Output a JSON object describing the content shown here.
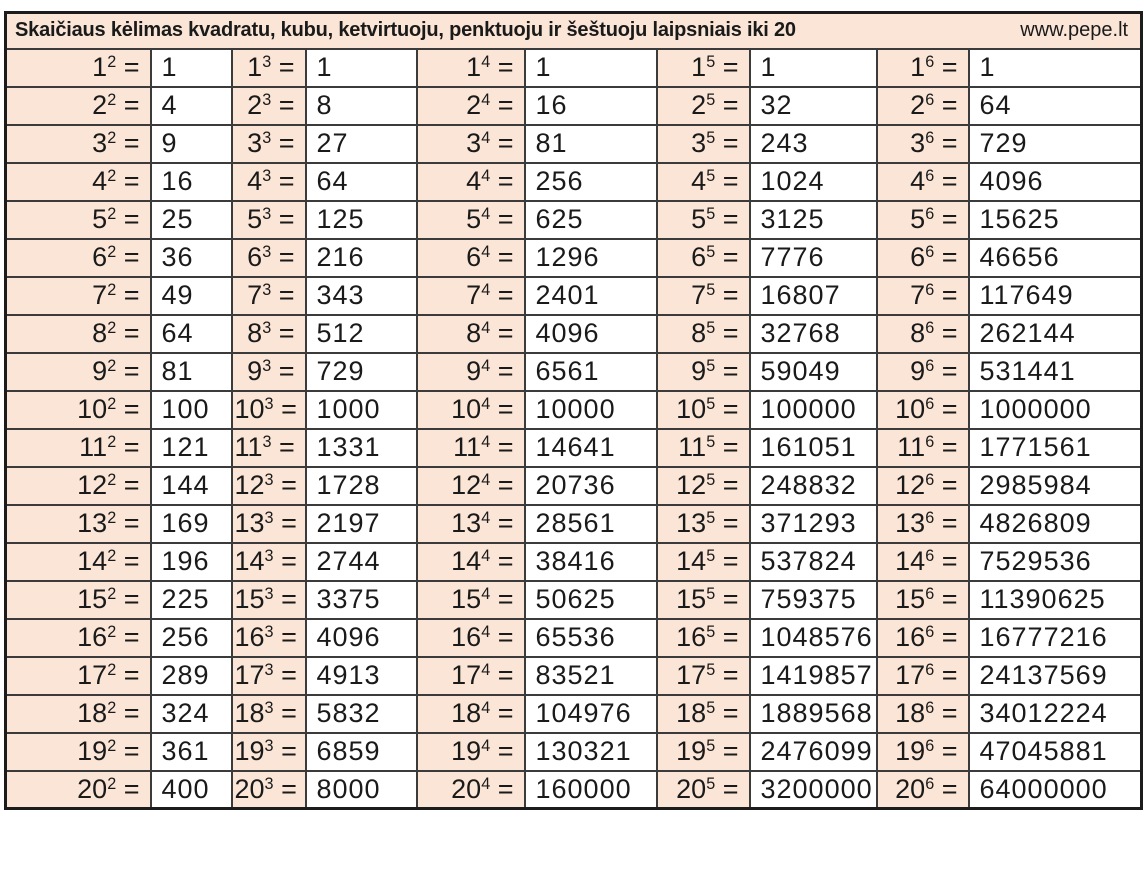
{
  "title": "Skaičiaus kėlimas kvadratu, kubu, ketvirtuoju, penktuoju ir šeštuoju laipsniais iki 20",
  "site": "www.pepe.lt",
  "colors": {
    "cell_bg": "#fbe5d6",
    "grid_border": "#3b3b3b",
    "outer_border": "#1c1c1c",
    "text": "#1a1a1a",
    "value_bg": "#ffffff"
  },
  "table": {
    "exponents": [
      2,
      3,
      4,
      5,
      6
    ],
    "equals": "=",
    "rows": [
      {
        "base": "1",
        "values": [
          "1",
          "1",
          "1",
          "1",
          "1"
        ]
      },
      {
        "base": "2",
        "values": [
          "4",
          "8",
          "16",
          "32",
          "64"
        ]
      },
      {
        "base": "3",
        "values": [
          "9",
          "27",
          "81",
          "243",
          "729"
        ]
      },
      {
        "base": "4",
        "values": [
          "16",
          "64",
          "256",
          "1024",
          "4096"
        ]
      },
      {
        "base": "5",
        "values": [
          "25",
          "125",
          "625",
          "3125",
          "15625"
        ]
      },
      {
        "base": "6",
        "values": [
          "36",
          "216",
          "1296",
          "7776",
          "46656"
        ]
      },
      {
        "base": "7",
        "values": [
          "49",
          "343",
          "2401",
          "16807",
          "117649"
        ]
      },
      {
        "base": "8",
        "values": [
          "64",
          "512",
          "4096",
          "32768",
          "262144"
        ]
      },
      {
        "base": "9",
        "values": [
          "81",
          "729",
          "6561",
          "59049",
          "531441"
        ]
      },
      {
        "base": "10",
        "values": [
          "100",
          "1000",
          "10000",
          "100000",
          "1000000"
        ]
      },
      {
        "base": "11",
        "values": [
          "121",
          "1331",
          "14641",
          "161051",
          "1771561"
        ]
      },
      {
        "base": "12",
        "values": [
          "144",
          "1728",
          "20736",
          "248832",
          "2985984"
        ]
      },
      {
        "base": "13",
        "values": [
          "169",
          "2197",
          "28561",
          "371293",
          "4826809"
        ]
      },
      {
        "base": "14",
        "values": [
          "196",
          "2744",
          "38416",
          "537824",
          "7529536"
        ]
      },
      {
        "base": "15",
        "values": [
          "225",
          "3375",
          "50625",
          "759375",
          "11390625"
        ]
      },
      {
        "base": "16",
        "values": [
          "256",
          "4096",
          "65536",
          "1048576",
          "16777216"
        ]
      },
      {
        "base": "17",
        "values": [
          "289",
          "4913",
          "83521",
          "1419857",
          "24137569"
        ]
      },
      {
        "base": "18",
        "values": [
          "324",
          "5832",
          "104976",
          "1889568",
          "34012224"
        ]
      },
      {
        "base": "19",
        "values": [
          "361",
          "6859",
          "130321",
          "2476099",
          "47045881"
        ]
      },
      {
        "base": "20",
        "values": [
          "400",
          "8000",
          "160000",
          "3200000",
          "64000000"
        ]
      }
    ]
  }
}
